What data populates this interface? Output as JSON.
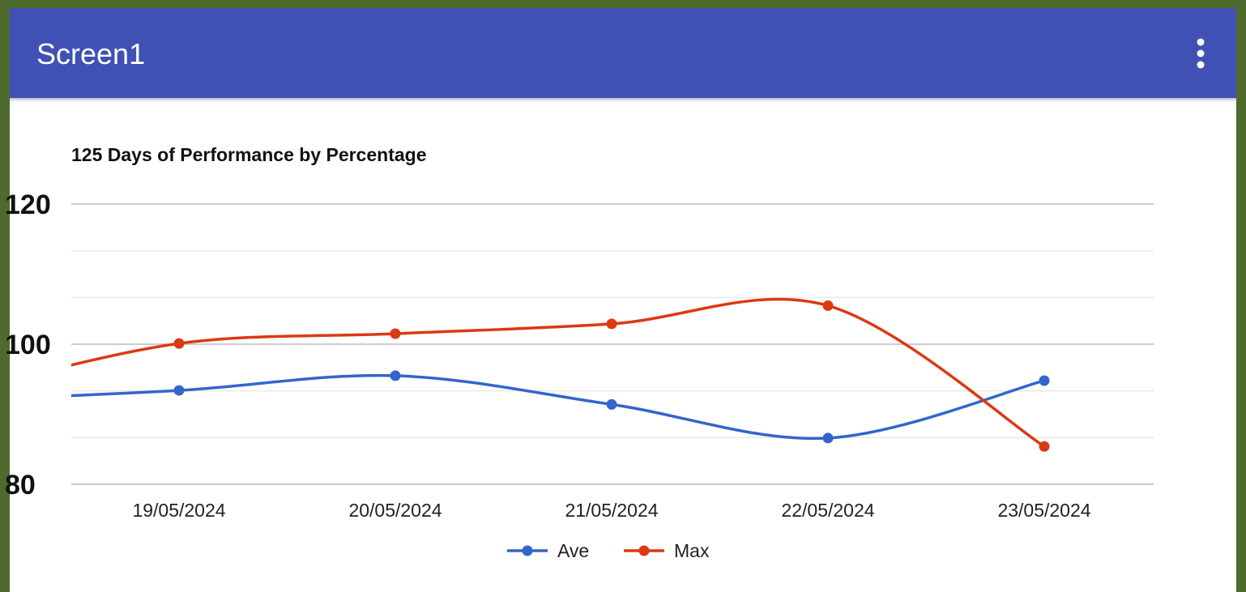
{
  "app": {
    "title": "Screen1",
    "menu_icon": "more-vertical-icon"
  },
  "colors": {
    "appbar": "#3f51b5",
    "ave": "#3366cc",
    "max": "#dc3912"
  },
  "chart_data": {
    "type": "line",
    "title": "125 Days of Performance by Percentage",
    "categories": [
      "19/05/2024",
      "20/05/2024",
      "21/05/2024",
      "22/05/2024",
      "23/05/2024"
    ],
    "series": [
      {
        "name": "Ave",
        "values": [
          93.4,
          95.5,
          91.4,
          86.6,
          94.8
        ]
      },
      {
        "name": "Max",
        "values": [
          100.1,
          101.5,
          102.9,
          105.5,
          85.4
        ]
      }
    ],
    "ylim": [
      80,
      120
    ],
    "yticks": [
      "120",
      "100",
      "80"
    ],
    "legend": "bottom",
    "grid": true
  }
}
